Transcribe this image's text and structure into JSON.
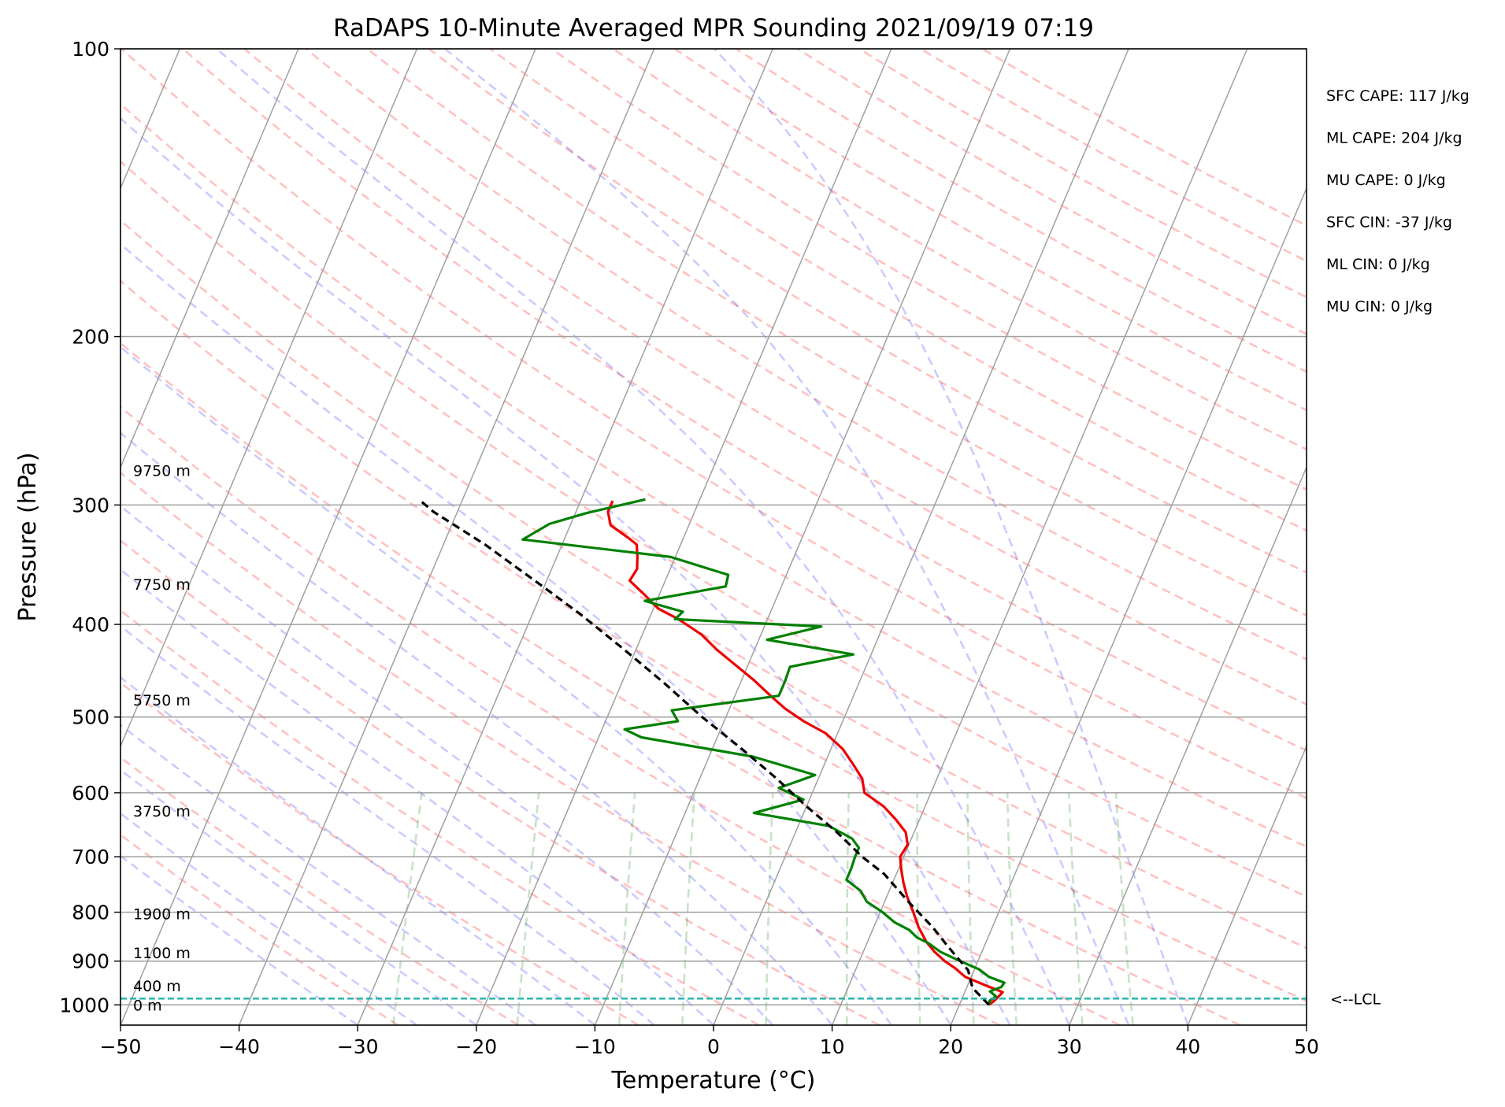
{
  "chart_data": {
    "type": "line",
    "title": "RaDAPS 10-Minute Averaged MPR Sounding 2021/09/19 07:19",
    "xlabel": "Temperature (°C)",
    "ylabel": "Pressure (hPa)",
    "xlim": [
      -50,
      50
    ],
    "ylim": [
      1050,
      100
    ],
    "y_scale": "log",
    "grid": true,
    "x_ticks": [
      -50,
      -40,
      -30,
      -20,
      -10,
      0,
      10,
      20,
      30,
      40,
      50
    ],
    "x_tick_labels": [
      "−50",
      "−40",
      "−30",
      "−20",
      "−10",
      "0",
      "10",
      "20",
      "30",
      "40",
      "50"
    ],
    "y_ticks": [
      1000,
      900,
      800,
      700,
      600,
      500,
      400,
      300,
      200,
      100
    ],
    "y_tick_labels": [
      "1000",
      "900",
      "800",
      "700",
      "600",
      "500",
      "400",
      "300",
      "200",
      "100"
    ],
    "height_labels": [
      {
        "text": "0 m",
        "p": 1000
      },
      {
        "text": "400 m",
        "p": 955
      },
      {
        "text": "1100 m",
        "p": 882
      },
      {
        "text": "1900 m",
        "p": 803
      },
      {
        "text": "3750 m",
        "p": 627
      },
      {
        "text": "5750 m",
        "p": 480
      },
      {
        "text": "7750 m",
        "p": 363
      },
      {
        "text": "9750 m",
        "p": 276
      }
    ],
    "lcl": {
      "p": 985,
      "label": "<--LCL",
      "color": "#20b2aa"
    },
    "stats": [
      "SFC CAPE: 117 J/kg",
      "ML CAPE: 204 J/kg",
      "MU CAPE: 0 J/kg",
      "SFC CIN: -37 J/kg",
      "ML CIN: 0 J/kg",
      "MU CIN: 0 J/kg"
    ],
    "series": [
      {
        "color": "#ee0000",
        "points": [
          [
            22.5,
            1000
          ],
          [
            22.8,
            990
          ],
          [
            23.2,
            970
          ],
          [
            21.6,
            955
          ],
          [
            19.5,
            935
          ],
          [
            18.3,
            915
          ],
          [
            17.2,
            900
          ],
          [
            16.0,
            880
          ],
          [
            15.0,
            860
          ],
          [
            13.8,
            830
          ],
          [
            12.8,
            800
          ],
          [
            11.7,
            770
          ],
          [
            10.9,
            745
          ],
          [
            10.2,
            720
          ],
          [
            9.7,
            700
          ],
          [
            9.9,
            680
          ],
          [
            9.3,
            660
          ],
          [
            8.0,
            640
          ],
          [
            6.5,
            620
          ],
          [
            4.4,
            600
          ],
          [
            3.7,
            580
          ],
          [
            2.4,
            560
          ],
          [
            1.0,
            540
          ],
          [
            -1.0,
            520
          ],
          [
            -3.3,
            505
          ],
          [
            -5.3,
            490
          ],
          [
            -7.0,
            475
          ],
          [
            -8.9,
            458
          ],
          [
            -11.2,
            440
          ],
          [
            -13.2,
            425
          ],
          [
            -15.0,
            410
          ],
          [
            -17.5,
            395
          ],
          [
            -19.6,
            385
          ],
          [
            -21.3,
            372
          ],
          [
            -23.0,
            360
          ],
          [
            -22.8,
            350
          ],
          [
            -23.2,
            340
          ],
          [
            -23.7,
            330
          ],
          [
            -24.6,
            325
          ],
          [
            -26.6,
            315
          ],
          [
            -27.3,
            305
          ],
          [
            -27.3,
            297
          ]
        ]
      },
      {
        "color": "#008000",
        "points": [
          [
            22.5,
            1000
          ],
          [
            22.4,
            990
          ],
          [
            22.8,
            980
          ],
          [
            22.1,
            968
          ],
          [
            22.9,
            958
          ],
          [
            23.0,
            948
          ],
          [
            21.5,
            935
          ],
          [
            20.4,
            918
          ],
          [
            18.5,
            900
          ],
          [
            16.5,
            880
          ],
          [
            15.2,
            862
          ],
          [
            14.0,
            850
          ],
          [
            13.1,
            835
          ],
          [
            11.6,
            820
          ],
          [
            10.2,
            800
          ],
          [
            8.5,
            780
          ],
          [
            7.6,
            760
          ],
          [
            6.0,
            740
          ],
          [
            6.0,
            720
          ],
          [
            5.9,
            700
          ],
          [
            5.9,
            685
          ],
          [
            5.0,
            670
          ],
          [
            2.6,
            650
          ],
          [
            -4.2,
            630
          ],
          [
            -0.5,
            610
          ],
          [
            -3.0,
            593
          ],
          [
            -0.4,
            575
          ],
          [
            -6.3,
            550
          ],
          [
            -16.4,
            525
          ],
          [
            -18.1,
            515
          ],
          [
            -13.9,
            505
          ],
          [
            -14.8,
            492
          ],
          [
            -6.3,
            475
          ],
          [
            -6.3,
            458
          ],
          [
            -6.4,
            443
          ],
          [
            -1.5,
            430
          ],
          [
            -9.3,
            415
          ],
          [
            -5.2,
            402
          ],
          [
            -17.8,
            395
          ],
          [
            -17.4,
            388
          ],
          [
            -21.0,
            378
          ],
          [
            -14.7,
            365
          ],
          [
            -14.9,
            355
          ],
          [
            -20.4,
            340
          ],
          [
            -33.5,
            326
          ],
          [
            -31.8,
            314
          ],
          [
            -29.1,
            306
          ],
          [
            -24.6,
            296
          ]
        ]
      },
      {
        "color": "#000000",
        "style": "dashed",
        "points": [
          [
            22.5,
            1000
          ],
          [
            20.5,
            960
          ],
          [
            19.5,
            920
          ],
          [
            17.0,
            870
          ],
          [
            15.0,
            830
          ],
          [
            12.0,
            780
          ],
          [
            9.0,
            730
          ],
          [
            6.5,
            700
          ],
          [
            3.5,
            660
          ],
          [
            0.0,
            620
          ],
          [
            -3.5,
            580
          ],
          [
            -7.5,
            540
          ],
          [
            -12.0,
            500
          ],
          [
            -16.5,
            460
          ],
          [
            -21.0,
            425
          ],
          [
            -26.0,
            390
          ],
          [
            -31.0,
            360
          ],
          [
            -36.5,
            330
          ],
          [
            -42.0,
            305
          ],
          [
            -43.5,
            297
          ]
        ]
      }
    ]
  }
}
